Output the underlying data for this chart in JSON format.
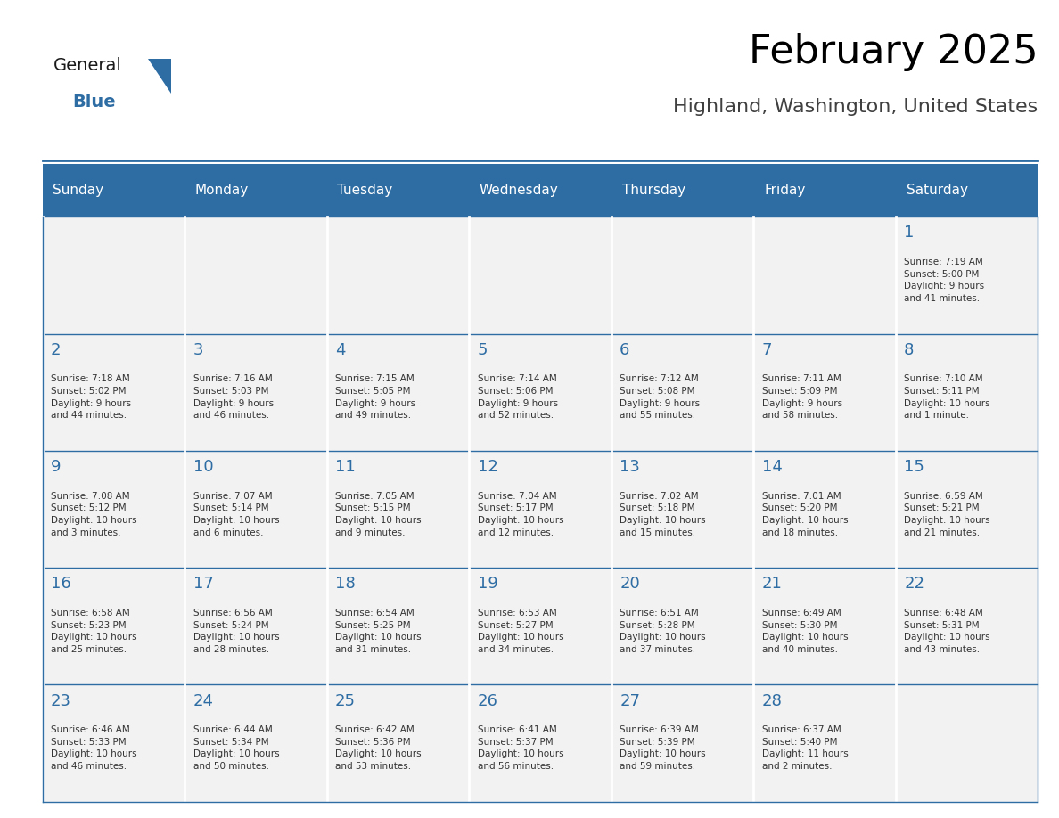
{
  "title": "February 2025",
  "subtitle": "Highland, Washington, United States",
  "header_color": "#2E6DA4",
  "header_text_color": "#FFFFFF",
  "cell_bg_color": "#F2F2F2",
  "grid_line_color": "#2E6DA4",
  "day_number_color": "#2E6DA4",
  "text_color": "#333333",
  "days_of_week": [
    "Sunday",
    "Monday",
    "Tuesday",
    "Wednesday",
    "Thursday",
    "Friday",
    "Saturday"
  ],
  "calendar_data": [
    [
      "",
      "",
      "",
      "",
      "",
      "",
      "1\nSunrise: 7:19 AM\nSunset: 5:00 PM\nDaylight: 9 hours\nand 41 minutes."
    ],
    [
      "2\nSunrise: 7:18 AM\nSunset: 5:02 PM\nDaylight: 9 hours\nand 44 minutes.",
      "3\nSunrise: 7:16 AM\nSunset: 5:03 PM\nDaylight: 9 hours\nand 46 minutes.",
      "4\nSunrise: 7:15 AM\nSunset: 5:05 PM\nDaylight: 9 hours\nand 49 minutes.",
      "5\nSunrise: 7:14 AM\nSunset: 5:06 PM\nDaylight: 9 hours\nand 52 minutes.",
      "6\nSunrise: 7:12 AM\nSunset: 5:08 PM\nDaylight: 9 hours\nand 55 minutes.",
      "7\nSunrise: 7:11 AM\nSunset: 5:09 PM\nDaylight: 9 hours\nand 58 minutes.",
      "8\nSunrise: 7:10 AM\nSunset: 5:11 PM\nDaylight: 10 hours\nand 1 minute."
    ],
    [
      "9\nSunrise: 7:08 AM\nSunset: 5:12 PM\nDaylight: 10 hours\nand 3 minutes.",
      "10\nSunrise: 7:07 AM\nSunset: 5:14 PM\nDaylight: 10 hours\nand 6 minutes.",
      "11\nSunrise: 7:05 AM\nSunset: 5:15 PM\nDaylight: 10 hours\nand 9 minutes.",
      "12\nSunrise: 7:04 AM\nSunset: 5:17 PM\nDaylight: 10 hours\nand 12 minutes.",
      "13\nSunrise: 7:02 AM\nSunset: 5:18 PM\nDaylight: 10 hours\nand 15 minutes.",
      "14\nSunrise: 7:01 AM\nSunset: 5:20 PM\nDaylight: 10 hours\nand 18 minutes.",
      "15\nSunrise: 6:59 AM\nSunset: 5:21 PM\nDaylight: 10 hours\nand 21 minutes."
    ],
    [
      "16\nSunrise: 6:58 AM\nSunset: 5:23 PM\nDaylight: 10 hours\nand 25 minutes.",
      "17\nSunrise: 6:56 AM\nSunset: 5:24 PM\nDaylight: 10 hours\nand 28 minutes.",
      "18\nSunrise: 6:54 AM\nSunset: 5:25 PM\nDaylight: 10 hours\nand 31 minutes.",
      "19\nSunrise: 6:53 AM\nSunset: 5:27 PM\nDaylight: 10 hours\nand 34 minutes.",
      "20\nSunrise: 6:51 AM\nSunset: 5:28 PM\nDaylight: 10 hours\nand 37 minutes.",
      "21\nSunrise: 6:49 AM\nSunset: 5:30 PM\nDaylight: 10 hours\nand 40 minutes.",
      "22\nSunrise: 6:48 AM\nSunset: 5:31 PM\nDaylight: 10 hours\nand 43 minutes."
    ],
    [
      "23\nSunrise: 6:46 AM\nSunset: 5:33 PM\nDaylight: 10 hours\nand 46 minutes.",
      "24\nSunrise: 6:44 AM\nSunset: 5:34 PM\nDaylight: 10 hours\nand 50 minutes.",
      "25\nSunrise: 6:42 AM\nSunset: 5:36 PM\nDaylight: 10 hours\nand 53 minutes.",
      "26\nSunrise: 6:41 AM\nSunset: 5:37 PM\nDaylight: 10 hours\nand 56 minutes.",
      "27\nSunrise: 6:39 AM\nSunset: 5:39 PM\nDaylight: 10 hours\nand 59 minutes.",
      "28\nSunrise: 6:37 AM\nSunset: 5:40 PM\nDaylight: 11 hours\nand 2 minutes.",
      ""
    ]
  ],
  "logo_text_general": "General",
  "logo_text_blue": "Blue",
  "logo_color_general": "#1A1A1A",
  "logo_color_blue": "#2E6DA4",
  "logo_triangle_color": "#2E6DA4"
}
